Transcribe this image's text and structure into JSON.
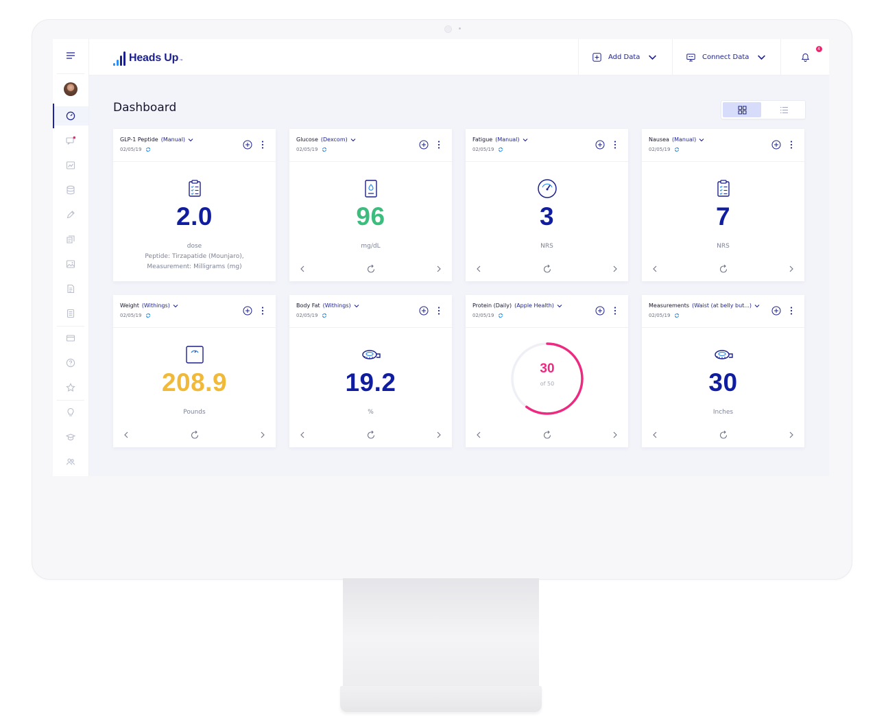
{
  "app": {
    "logo_text": "Heads Up",
    "logo_tm": "™"
  },
  "topbar": {
    "add_data_label": "Add Data",
    "connect_data_label": "Connect Data",
    "notifications_count": "4"
  },
  "page": {
    "title": "Dashboard"
  },
  "sidebar": {
    "items": [
      {
        "icon": "menu-icon"
      },
      {
        "icon": "avatar"
      },
      {
        "icon": "dashboard-gauge-icon",
        "active": true
      },
      {
        "icon": "messages-icon",
        "badge": true
      },
      {
        "icon": "chart-icon"
      },
      {
        "icon": "database-icon"
      },
      {
        "icon": "pencil-icon"
      },
      {
        "icon": "notes-icon"
      },
      {
        "icon": "image-icon"
      },
      {
        "icon": "document-icon"
      },
      {
        "icon": "list-document-icon"
      },
      {
        "icon": "card-icon"
      },
      {
        "icon": "help-icon"
      },
      {
        "icon": "star-icon"
      },
      {
        "icon": "lightbulb-icon"
      },
      {
        "icon": "graduation-icon"
      },
      {
        "icon": "community-icon"
      }
    ]
  },
  "colors": {
    "brand": "#1a1f8f",
    "green": "#3dbd7d",
    "yellow": "#f0b93a",
    "pink": "#ee2a80",
    "accent_blue": "#2b8ef0"
  },
  "cards": [
    {
      "title": "GLP-1 Peptide",
      "source": "(Manual)",
      "date": "02/05/19",
      "icon": "clipboard-icon",
      "value": "2.0",
      "value_color": "#0f1d9e",
      "unit_lines": [
        "dose",
        "Peptide: Tirzapatide (Mounjaro),",
        "Measurement: Milligrams (mg)"
      ],
      "show_nav": false
    },
    {
      "title": "Glucose",
      "source": "(Dexcom)",
      "date": "02/05/19",
      "icon": "glucose-device-icon",
      "value": "96",
      "value_color": "#3dbd7d",
      "unit_lines": [
        "mg/dL"
      ],
      "show_nav": true
    },
    {
      "title": "Fatigue",
      "source": "(Manual)",
      "date": "02/05/19",
      "icon": "gauge-icon",
      "value": "3",
      "value_color": "#0f1d9e",
      "unit_lines": [
        "NRS"
      ],
      "show_nav": true
    },
    {
      "title": "Nausea",
      "source": "(Manual)",
      "date": "02/05/19",
      "icon": "clipboard-icon",
      "value": "7",
      "value_color": "#0f1d9e",
      "unit_lines": [
        "NRS"
      ],
      "show_nav": true
    },
    {
      "title": "Weight",
      "source": "(Withings)",
      "date": "02/05/19",
      "icon": "scale-icon",
      "value": "208.9",
      "value_color": "#f0b93a",
      "unit_lines": [
        "Pounds"
      ],
      "show_nav": true
    },
    {
      "title": "Body Fat",
      "source": "(Withings)",
      "date": "02/05/19",
      "icon": "tape-measure-icon",
      "value": "19.2",
      "value_color": "#0f1d9e",
      "unit_lines": [
        "%"
      ],
      "show_nav": true
    },
    {
      "title": "Protein (Daily)",
      "source": "(Apple Health)",
      "date": "02/05/19",
      "icon": "progress-ring",
      "value": "30",
      "value_color": "#ee2a80",
      "of_text": "of 50",
      "progress_value": 30,
      "progress_max": 50,
      "unit_lines": [],
      "show_nav": true
    },
    {
      "title": "Measurements",
      "source": "(Waist (at belly but...)",
      "date": "02/05/19",
      "icon": "tape-measure-icon",
      "value": "30",
      "value_color": "#0f1d9e",
      "unit_lines": [
        "Inches"
      ],
      "show_nav": true
    }
  ]
}
